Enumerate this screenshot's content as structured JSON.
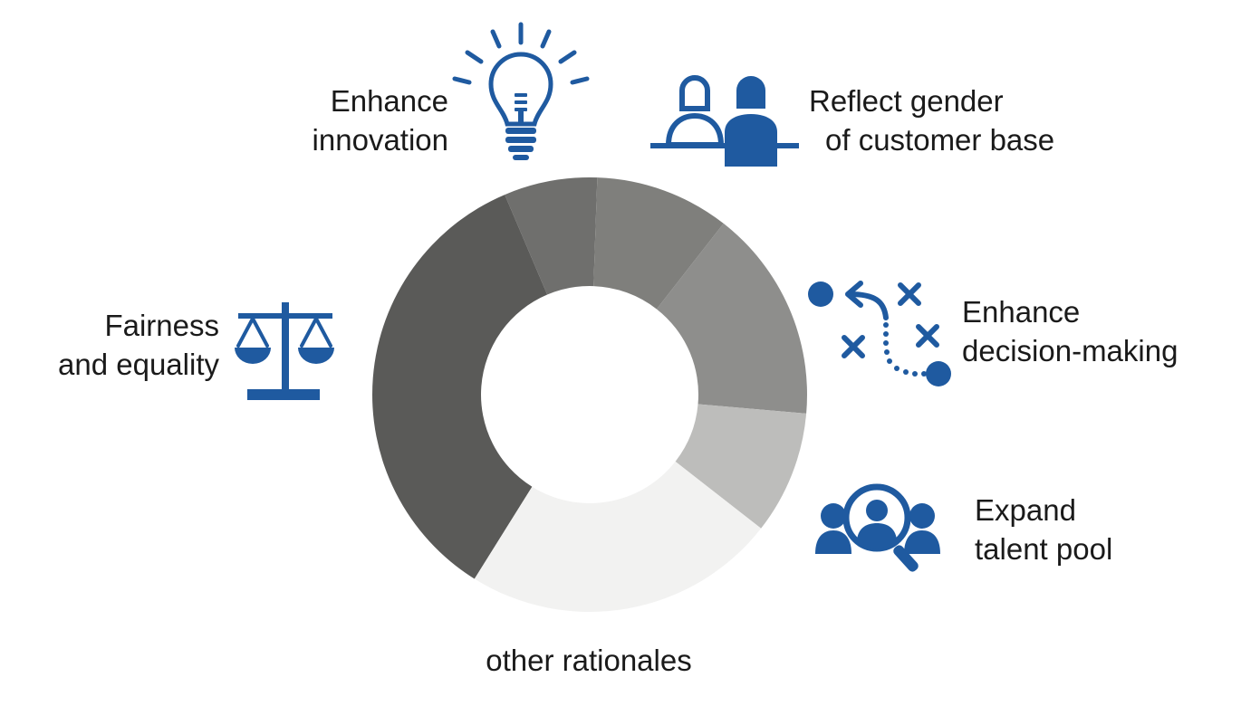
{
  "colors": {
    "icon": "#1f5aa0",
    "segments": [
      "#5a5a58",
      "#6f6f6d",
      "#7f7f7c",
      "#8e8e8c",
      "#bdbdbb",
      "#f2f2f1"
    ]
  },
  "diagram": {
    "segments": [
      {
        "label_ref": "fairness",
        "start": 212,
        "end": 337
      },
      {
        "label_ref": "innovation",
        "start": 337,
        "end": 2
      },
      {
        "label_ref": "customer",
        "start": 2,
        "end": 38
      },
      {
        "label_ref": "decision",
        "start": 38,
        "end": 95
      },
      {
        "label_ref": "talent",
        "start": 95,
        "end": 128
      },
      {
        "label_ref": "other",
        "start": 128,
        "end": 212
      }
    ]
  },
  "labels": {
    "innovation": {
      "line1": "Enhance",
      "line2": "innovation",
      "icon": "lightbulb-icon"
    },
    "customer": {
      "line1": "Reflect gender",
      "line2": "of customer base",
      "icon": "customer-counter-icon"
    },
    "decision": {
      "line1": "Enhance",
      "line2": "decision-making",
      "icon": "strategy-play-icon"
    },
    "talent": {
      "line1": "Expand",
      "line2": "talent pool",
      "icon": "talent-search-icon"
    },
    "fairness": {
      "line1": "Fairness",
      "line2": "and equality",
      "icon": "scales-icon"
    },
    "other": {
      "line1": "other rationales"
    }
  }
}
